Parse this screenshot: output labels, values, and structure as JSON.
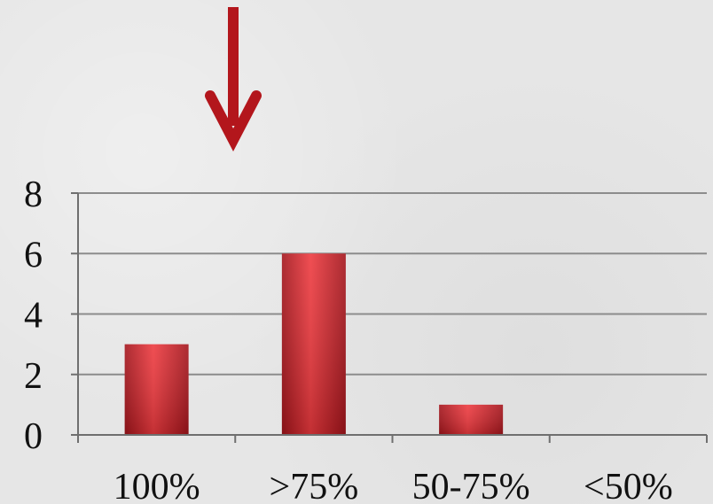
{
  "chart_data": {
    "type": "bar",
    "categories": [
      "100%",
      ">75%",
      "50-75%",
      "<50%"
    ],
    "values": [
      3,
      6,
      1,
      0
    ],
    "title": "",
    "xlabel": "",
    "ylabel": "",
    "ylim": [
      0,
      8
    ],
    "yticks": [
      0,
      2,
      4,
      6,
      8
    ],
    "grid": true,
    "legend": "none",
    "annotation": {
      "type": "arrow",
      "direction": "down",
      "points_to_category": ">75%"
    }
  },
  "colors": {
    "bar": "#d42027",
    "bar_dark": "#a3141b",
    "bar_light": "#ee3a3f",
    "arrow": "#b3161c",
    "grid": "#8c8c8c",
    "axis": "#6f6f6f",
    "text": "#111111",
    "background": "#e6e6e6"
  }
}
